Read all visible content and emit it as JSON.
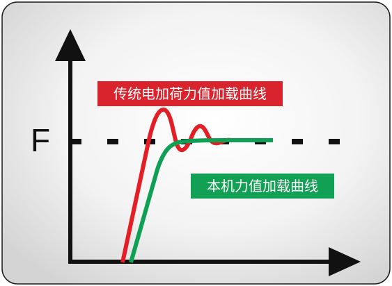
{
  "axis_label_y": "F",
  "legend": {
    "traditional_curve_label": "传统电加荷力值加载曲线",
    "this_machine_curve_label": "本机力值加载曲线"
  },
  "colors": {
    "panel_border": "#1a1a1a",
    "panel_gradient_edge": "#d6d6d6",
    "panel_gradient_center": "#ffffff",
    "axis": "#111111",
    "target_line": "#111111",
    "traditional_curve": "#e31e24",
    "this_machine_curve": "#0fa055",
    "label_red_bg": "#d9232d",
    "label_green_bg": "#12a055"
  }
}
